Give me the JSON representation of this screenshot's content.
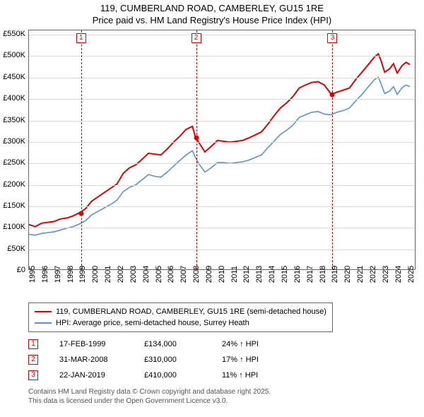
{
  "title": {
    "line1": "119, CUMBERLAND ROAD, CAMBERLEY, GU15 1RE",
    "line2": "Price paid vs. HM Land Registry's House Price Index (HPI)"
  },
  "chart": {
    "type": "line",
    "x_start": 1995,
    "x_end": 2025.7,
    "y_min": 0,
    "y_max": 560000,
    "y_ticks": [
      0,
      50000,
      100000,
      150000,
      200000,
      250000,
      300000,
      350000,
      400000,
      450000,
      500000,
      550000
    ],
    "y_tick_labels": [
      "£0",
      "£50K",
      "£100K",
      "£150K",
      "£200K",
      "£250K",
      "£300K",
      "£350K",
      "£400K",
      "£450K",
      "£500K",
      "£550K"
    ],
    "x_ticks": [
      1995,
      1996,
      1997,
      1998,
      1999,
      2000,
      2001,
      2002,
      2003,
      2004,
      2005,
      2006,
      2007,
      2008,
      2009,
      2010,
      2011,
      2012,
      2013,
      2014,
      2015,
      2016,
      2017,
      2018,
      2019,
      2020,
      2021,
      2022,
      2023,
      2024,
      2025
    ],
    "grid_color": "#d9d9d9",
    "background_color": "#ffffff",
    "series": [
      {
        "name": "price_paid",
        "color": "#dc0000",
        "width": 2,
        "label": "119, CUMBERLAND ROAD, CAMBERLEY, GU15 1RE (semi-detached house)",
        "points": [
          [
            1995.0,
            105000
          ],
          [
            1995.5,
            100000
          ],
          [
            1996.0,
            108000
          ],
          [
            1996.5,
            110000
          ],
          [
            1997.0,
            112000
          ],
          [
            1997.5,
            118000
          ],
          [
            1998.0,
            120000
          ],
          [
            1998.5,
            125000
          ],
          [
            1999.13,
            134000
          ],
          [
            1999.5,
            142000
          ],
          [
            2000.0,
            160000
          ],
          [
            2000.5,
            170000
          ],
          [
            2001.0,
            180000
          ],
          [
            2001.5,
            190000
          ],
          [
            2002.0,
            200000
          ],
          [
            2002.5,
            225000
          ],
          [
            2003.0,
            238000
          ],
          [
            2003.5,
            245000
          ],
          [
            2004.0,
            258000
          ],
          [
            2004.5,
            272000
          ],
          [
            2005.0,
            270000
          ],
          [
            2005.5,
            268000
          ],
          [
            2006.0,
            282000
          ],
          [
            2006.5,
            298000
          ],
          [
            2007.0,
            312000
          ],
          [
            2007.5,
            328000
          ],
          [
            2008.0,
            335000
          ],
          [
            2008.25,
            310000
          ],
          [
            2008.5,
            298000
          ],
          [
            2009.0,
            275000
          ],
          [
            2009.5,
            288000
          ],
          [
            2010.0,
            302000
          ],
          [
            2010.5,
            300000
          ],
          [
            2011.0,
            298000
          ],
          [
            2011.5,
            300000
          ],
          [
            2012.0,
            302000
          ],
          [
            2012.5,
            308000
          ],
          [
            2013.0,
            315000
          ],
          [
            2013.5,
            322000
          ],
          [
            2014.0,
            340000
          ],
          [
            2014.5,
            360000
          ],
          [
            2015.0,
            378000
          ],
          [
            2015.5,
            390000
          ],
          [
            2016.0,
            405000
          ],
          [
            2016.5,
            425000
          ],
          [
            2017.0,
            432000
          ],
          [
            2017.5,
            438000
          ],
          [
            2018.0,
            440000
          ],
          [
            2018.5,
            432000
          ],
          [
            2019.06,
            410000
          ],
          [
            2019.5,
            415000
          ],
          [
            2020.0,
            420000
          ],
          [
            2020.5,
            425000
          ],
          [
            2021.0,
            445000
          ],
          [
            2021.5,
            462000
          ],
          [
            2022.0,
            480000
          ],
          [
            2022.5,
            498000
          ],
          [
            2022.8,
            505000
          ],
          [
            2023.0,
            490000
          ],
          [
            2023.3,
            462000
          ],
          [
            2023.7,
            470000
          ],
          [
            2024.0,
            482000
          ],
          [
            2024.3,
            460000
          ],
          [
            2024.7,
            478000
          ],
          [
            2025.0,
            485000
          ],
          [
            2025.3,
            480000
          ]
        ]
      },
      {
        "name": "hpi",
        "color": "#5b8fd6",
        "width": 1.6,
        "label": "HPI: Average price, semi-detached house, Surrey Heath",
        "points": [
          [
            1995.0,
            82000
          ],
          [
            1995.5,
            80000
          ],
          [
            1996.0,
            84000
          ],
          [
            1996.5,
            86000
          ],
          [
            1997.0,
            88000
          ],
          [
            1997.5,
            92000
          ],
          [
            1998.0,
            96000
          ],
          [
            1998.5,
            100000
          ],
          [
            1999.0,
            106000
          ],
          [
            1999.5,
            114000
          ],
          [
            2000.0,
            128000
          ],
          [
            2000.5,
            136000
          ],
          [
            2001.0,
            144000
          ],
          [
            2001.5,
            152000
          ],
          [
            2002.0,
            162000
          ],
          [
            2002.5,
            182000
          ],
          [
            2003.0,
            192000
          ],
          [
            2003.5,
            198000
          ],
          [
            2004.0,
            210000
          ],
          [
            2004.5,
            222000
          ],
          [
            2005.0,
            218000
          ],
          [
            2005.5,
            216000
          ],
          [
            2006.0,
            228000
          ],
          [
            2006.5,
            242000
          ],
          [
            2007.0,
            255000
          ],
          [
            2007.5,
            268000
          ],
          [
            2008.0,
            278000
          ],
          [
            2008.25,
            262000
          ],
          [
            2008.5,
            248000
          ],
          [
            2009.0,
            228000
          ],
          [
            2009.5,
            238000
          ],
          [
            2010.0,
            250000
          ],
          [
            2010.5,
            250000
          ],
          [
            2011.0,
            248000
          ],
          [
            2011.5,
            250000
          ],
          [
            2012.0,
            252000
          ],
          [
            2012.5,
            256000
          ],
          [
            2013.0,
            262000
          ],
          [
            2013.5,
            268000
          ],
          [
            2014.0,
            285000
          ],
          [
            2014.5,
            300000
          ],
          [
            2015.0,
            316000
          ],
          [
            2015.5,
            326000
          ],
          [
            2016.0,
            338000
          ],
          [
            2016.5,
            356000
          ],
          [
            2017.0,
            362000
          ],
          [
            2017.5,
            368000
          ],
          [
            2018.0,
            370000
          ],
          [
            2018.5,
            364000
          ],
          [
            2019.0,
            362000
          ],
          [
            2019.5,
            368000
          ],
          [
            2020.0,
            372000
          ],
          [
            2020.5,
            378000
          ],
          [
            2021.0,
            395000
          ],
          [
            2021.5,
            410000
          ],
          [
            2022.0,
            428000
          ],
          [
            2022.5,
            445000
          ],
          [
            2022.8,
            450000
          ],
          [
            2023.0,
            436000
          ],
          [
            2023.3,
            412000
          ],
          [
            2023.7,
            418000
          ],
          [
            2024.0,
            428000
          ],
          [
            2024.3,
            410000
          ],
          [
            2024.7,
            426000
          ],
          [
            2025.0,
            432000
          ],
          [
            2025.3,
            428000
          ]
        ]
      }
    ],
    "sale_markers": [
      {
        "n": "1",
        "x": 1999.13,
        "y": 134000,
        "guide_color": "#dc0000"
      },
      {
        "n": "2",
        "x": 2008.25,
        "y": 310000,
        "guide_color": "#dc0000"
      },
      {
        "n": "3",
        "x": 2019.06,
        "y": 410000,
        "guide_color": "#dc0000"
      }
    ]
  },
  "sales_table": {
    "rows": [
      {
        "n": "1",
        "date": "17-FEB-1999",
        "price": "£134,000",
        "diff": "24% ↑ HPI"
      },
      {
        "n": "2",
        "date": "31-MAR-2008",
        "price": "£310,000",
        "diff": "17% ↑ HPI"
      },
      {
        "n": "3",
        "date": "22-JAN-2019",
        "price": "£410,000",
        "diff": "11% ↑ HPI"
      }
    ]
  },
  "footer": {
    "line1": "Contains HM Land Registry data © Crown copyright and database right 2025.",
    "line2": "This data is licensed under the Open Government Licence v3.0."
  }
}
